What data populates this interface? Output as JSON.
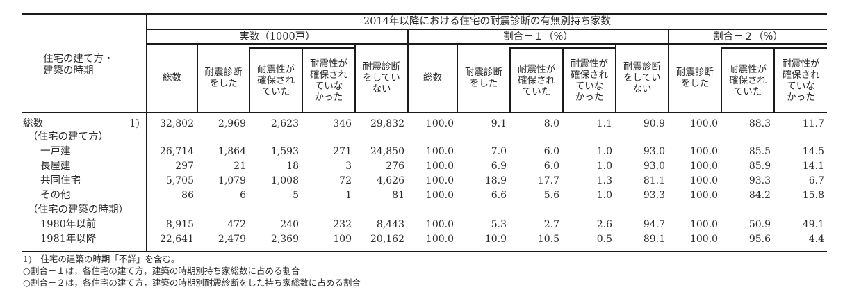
{
  "table": {
    "title": "2014年以降における住宅の耐震診断の有無別持ち家数",
    "stub_header": [
      "住宅の建て方・",
      "建築の時期"
    ],
    "groups": [
      {
        "label": "実数（1000戸）"
      },
      {
        "label": "割合－１（%）"
      },
      {
        "label": "割合－２（%）"
      }
    ],
    "columns": [
      {
        "lines": [
          "総数"
        ]
      },
      {
        "lines": [
          "耐震診断",
          "をした"
        ]
      },
      {
        "lines": [
          "耐震性が",
          "確保され",
          "ていた"
        ]
      },
      {
        "lines": [
          "耐震性が",
          "確保され",
          "ていな",
          "かった"
        ]
      },
      {
        "lines": [
          "耐震診断",
          "をしてい",
          "ない"
        ]
      },
      {
        "lines": [
          "総数"
        ]
      },
      {
        "lines": [
          "耐震診断",
          "をした"
        ]
      },
      {
        "lines": [
          "耐震性が",
          "確保され",
          "ていた"
        ]
      },
      {
        "lines": [
          "耐震性が",
          "確保され",
          "ていな",
          "かった"
        ]
      },
      {
        "lines": [
          "耐震診断",
          "をしてい",
          "ない"
        ]
      },
      {
        "lines": [
          "耐震診断",
          "をした"
        ]
      },
      {
        "lines": [
          "耐震性が",
          "確保され",
          "ていた"
        ]
      },
      {
        "lines": [
          "耐震性が",
          "確保され",
          "ていな",
          "かった"
        ]
      }
    ],
    "rows": [
      {
        "label": "総数",
        "note": "1)",
        "values": [
          "32,802",
          "2,969",
          "2,623",
          "346",
          "29,832",
          "100.0",
          "9.1",
          "8.0",
          "1.1",
          "90.9",
          "100.0",
          "88.3",
          "11.7"
        ]
      },
      {
        "label": "（住宅の建て方）",
        "values": []
      },
      {
        "label": "一戸建",
        "values": [
          "26,714",
          "1,864",
          "1,593",
          "271",
          "24,850",
          "100.0",
          "7.0",
          "6.0",
          "1.0",
          "93.0",
          "100.0",
          "85.5",
          "14.5"
        ]
      },
      {
        "label": "長屋建",
        "values": [
          "297",
          "21",
          "18",
          "3",
          "276",
          "100.0",
          "6.9",
          "6.0",
          "1.0",
          "93.0",
          "100.0",
          "85.9",
          "14.1"
        ]
      },
      {
        "label": "共同住宅",
        "values": [
          "5,705",
          "1,079",
          "1,008",
          "72",
          "4,626",
          "100.0",
          "18.9",
          "17.7",
          "1.3",
          "81.1",
          "100.0",
          "93.3",
          "6.7"
        ]
      },
      {
        "label": "その他",
        "values": [
          "86",
          "6",
          "5",
          "1",
          "81",
          "100.0",
          "6.6",
          "5.6",
          "1.0",
          "93.3",
          "100.0",
          "84.2",
          "15.8"
        ]
      },
      {
        "label": "（住宅の建築の時期）",
        "values": []
      },
      {
        "label": "1980年以前",
        "values": [
          "8,915",
          "472",
          "240",
          "232",
          "8,443",
          "100.0",
          "5.3",
          "2.7",
          "2.6",
          "94.7",
          "100.0",
          "50.9",
          "49.1"
        ]
      },
      {
        "label": "1981年以降",
        "values": [
          "22,641",
          "2,479",
          "2,369",
          "109",
          "20,162",
          "100.0",
          "10.9",
          "10.5",
          "0.5",
          "89.1",
          "100.0",
          "95.6",
          "4.4"
        ]
      }
    ]
  },
  "footnotes": [
    "1)　住宅の建築の時期「不詳」を含む。",
    "○割合－１は，各住宅の建て方，建築の時期別持ち家総数に占める割合",
    "○割合－２は，各住宅の建て方，建築の時期別耐震診断をした持ち家総数に占める割合"
  ]
}
